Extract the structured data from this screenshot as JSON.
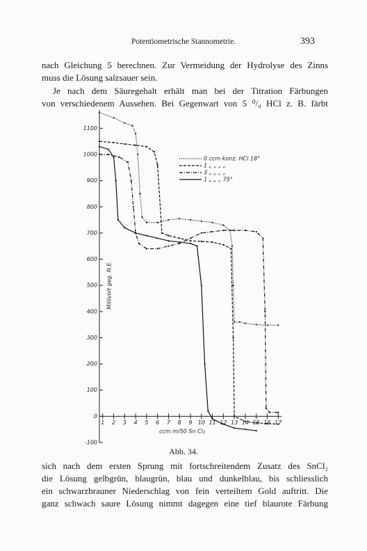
{
  "header": {
    "title": "Potentiometrische Stannometrie.",
    "page_number": "393"
  },
  "paragraphs_before": [
    [
      "nach Gleichung 5 berechnen.  Zur Vermeidung der Hydrolyse des Zinns",
      "muss die Lösung salzsauer sein."
    ],
    [
      "Je nach dem Säuregehalt erhält man bei der Titration Färbungen",
      "von verschiedenem Aussehen.  Bei Gegenwart von 5 ⁰/₀ HCl z. B. färbt"
    ]
  ],
  "chart_data": {
    "type": "line",
    "x_label": "ccm m/50 Sn Cl₂",
    "y_label": "Millivolt geg. N.E.",
    "xlim": [
      0.7,
      17.3
    ],
    "ylim": [
      -100,
      1170
    ],
    "xticks": [
      1,
      2,
      3,
      4,
      5,
      6,
      7,
      8,
      9,
      10,
      11,
      12,
      13,
      14,
      15,
      16,
      17
    ],
    "yticks": [
      -100,
      0,
      100,
      200,
      300,
      400,
      500,
      600,
      700,
      800,
      900,
      1000,
      1100
    ],
    "series": [
      {
        "name": "0 ccm konz. HCl 18°",
        "color": "#111111",
        "linestyle": "dotted",
        "x": [
          0.7,
          2,
          3,
          3.7,
          4.0,
          4.2,
          4.4,
          4.6,
          5,
          6,
          7,
          8,
          9,
          10,
          11,
          12,
          12.6,
          12.8,
          12.9,
          13,
          13.5,
          14,
          15,
          16,
          17
        ],
        "values": [
          1160,
          1140,
          1120,
          1110,
          1080,
          1000,
          850,
          760,
          740,
          740,
          750,
          755,
          750,
          745,
          740,
          730,
          710,
          650,
          500,
          360,
          360,
          355,
          350,
          348,
          348
        ]
      },
      {
        "name": "1 „ „ „ „",
        "color": "#111111",
        "linestyle": "dashed",
        "x": [
          0.7,
          2,
          3,
          4,
          5,
          5.7,
          6.0,
          6.4,
          7,
          8,
          9,
          10,
          11,
          12,
          12.7,
          12.9,
          13.0,
          14,
          15,
          16,
          17
        ],
        "values": [
          1050,
          1045,
          1040,
          1035,
          1030,
          1010,
          960,
          700,
          690,
          680,
          670,
          668,
          665,
          655,
          640,
          300,
          0,
          -20,
          -25,
          -28,
          -30
        ]
      },
      {
        "name": "3 „ „ „ „",
        "color": "#111111",
        "linestyle": "dashdot",
        "x": [
          0.7,
          1.5,
          2.5,
          3.3,
          3.6,
          3.8,
          4,
          4.3,
          5,
          6,
          7,
          8,
          9,
          10,
          11,
          12,
          13,
          14,
          15,
          15.6,
          15.8,
          15.9,
          16.2,
          17
        ],
        "values": [
          1000,
          1000,
          990,
          970,
          900,
          800,
          700,
          660,
          640,
          640,
          650,
          660,
          680,
          700,
          705,
          710,
          710,
          710,
          705,
          680,
          400,
          30,
          15,
          15
        ]
      },
      {
        "name": "1 „ „ „ 75°",
        "color": "#111111",
        "linestyle": "solid",
        "x": [
          0.7,
          1.5,
          2,
          2.2,
          2.4,
          3,
          4,
          5,
          6,
          7,
          8,
          9,
          9.6,
          10,
          10.3,
          10.6,
          11,
          12,
          13,
          14,
          15
        ],
        "values": [
          1030,
          1020,
          990,
          900,
          750,
          720,
          700,
          690,
          680,
          670,
          665,
          660,
          650,
          500,
          200,
          20,
          -10,
          -30,
          -45,
          -50,
          -55
        ]
      }
    ]
  },
  "caption": "Abb. 34.",
  "paragraph_after": [
    "sich nach dem ersten Sprung mit fortschreitendem Zusatz des SnCl₂",
    "die Lösung gelbgrün, blaugrün, blau und dunkelblau, bis schliesslich",
    "ein schwarzbrauner Niederschlag von fein verteiltem Gold auftritt.  Die",
    "ganz schwach saure Lösung nimmt dagegen eine tief blaurote Färbung"
  ]
}
